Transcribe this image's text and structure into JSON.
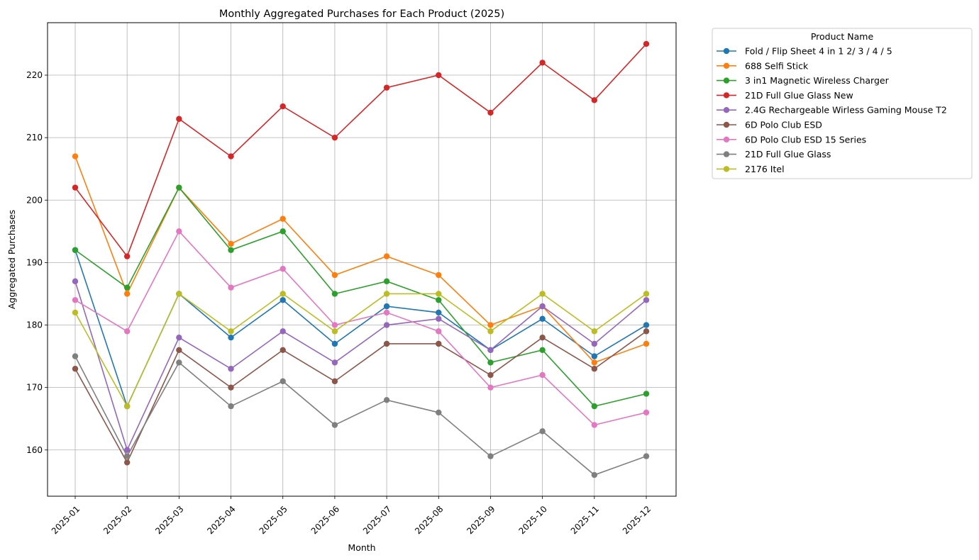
{
  "chart_data": {
    "type": "line",
    "title": "Monthly Aggregated Purchases for Each Product (2025)",
    "xlabel": "Month",
    "ylabel": "Aggregated Purchases",
    "categories": [
      "2025-01",
      "2025-02",
      "2025-03",
      "2025-04",
      "2025-05",
      "2025-06",
      "2025-07",
      "2025-08",
      "2025-09",
      "2025-10",
      "2025-11",
      "2025-12"
    ],
    "ylim": [
      152.6,
      228.4
    ],
    "yticks": [
      160,
      170,
      180,
      190,
      200,
      210,
      220
    ],
    "grid": true,
    "legend": {
      "title": "Product Name",
      "placement": "outside-top-right"
    },
    "series": [
      {
        "name": "Fold / Flip Sheet 4 in 1 2/ 3 / 4 / 5",
        "color": "#1f77b4",
        "values": [
          192,
          167,
          185,
          178,
          184,
          177,
          183,
          182,
          176,
          181,
          175,
          180
        ]
      },
      {
        "name": "688 Selfi Stick",
        "color": "#ff7f0e",
        "values": [
          207,
          185,
          202,
          193,
          197,
          188,
          191,
          188,
          180,
          183,
          174,
          177
        ]
      },
      {
        "name": "3 in1 Magnetic Wireless Charger",
        "color": "#2ca02c",
        "values": [
          192,
          186,
          202,
          192,
          195,
          185,
          187,
          184,
          174,
          176,
          167,
          169
        ]
      },
      {
        "name": "21D Full Glue Glass New",
        "color": "#d62728",
        "values": [
          202,
          191,
          213,
          207,
          215,
          210,
          218,
          220,
          214,
          222,
          216,
          225
        ]
      },
      {
        "name": "2.4G Rechargeable Wirless Gaming Mouse T2",
        "color": "#9467bd",
        "values": [
          187,
          160,
          178,
          173,
          179,
          174,
          180,
          181,
          176,
          183,
          177,
          184
        ]
      },
      {
        "name": "6D Polo Club ESD",
        "color": "#8c564b",
        "values": [
          173,
          158,
          176,
          170,
          176,
          171,
          177,
          177,
          172,
          178,
          173,
          179
        ]
      },
      {
        "name": "6D Polo Club ESD 15 Series",
        "color": "#e377c2",
        "values": [
          184,
          179,
          195,
          186,
          189,
          180,
          182,
          179,
          170,
          172,
          164,
          166
        ]
      },
      {
        "name": "21D Full Glue Glass",
        "color": "#7f7f7f",
        "values": [
          175,
          159,
          174,
          167,
          171,
          164,
          168,
          166,
          159,
          163,
          156,
          159
        ]
      },
      {
        "name": "2176 Itel",
        "color": "#bcbd22",
        "values": [
          182,
          167,
          185,
          179,
          185,
          179,
          185,
          185,
          179,
          185,
          179,
          185
        ]
      }
    ]
  }
}
